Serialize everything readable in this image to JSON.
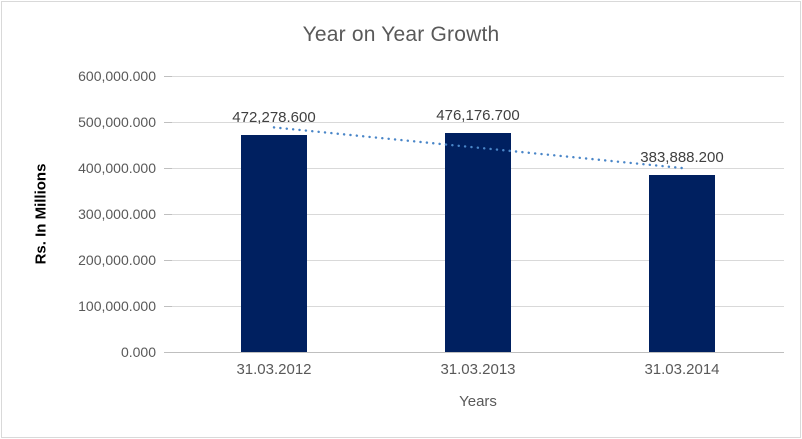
{
  "chart_data": {
    "type": "bar",
    "title": "Year on Year Growth",
    "xlabel": "Years",
    "ylabel": "Rs. In Millions",
    "categories": [
      "31.03.2012",
      "31.03.2013",
      "31.03.2014"
    ],
    "values": [
      472278.6,
      476176.7,
      383888.2
    ],
    "data_labels": [
      "472,278.600",
      "476,176.700",
      "383,888.200"
    ],
    "y_ticks": [
      "0.000",
      "100,000.000",
      "200,000.000",
      "300,000.000",
      "400,000.000",
      "500,000.000",
      "600,000.000"
    ],
    "ylim": [
      0,
      600000
    ],
    "grid": true,
    "legend": false,
    "bar_color": "#002060",
    "trendline": {
      "type": "linear",
      "style": "dotted",
      "color": "#4A86C8",
      "start_value": 488310,
      "end_value": 399919
    },
    "colors": {
      "background": "#ffffff",
      "border": "#D9D9D9",
      "text": "#595959",
      "data_label": "#404040",
      "gridline": "#D9D9D9",
      "axis_line": "#BFBFBF"
    }
  }
}
